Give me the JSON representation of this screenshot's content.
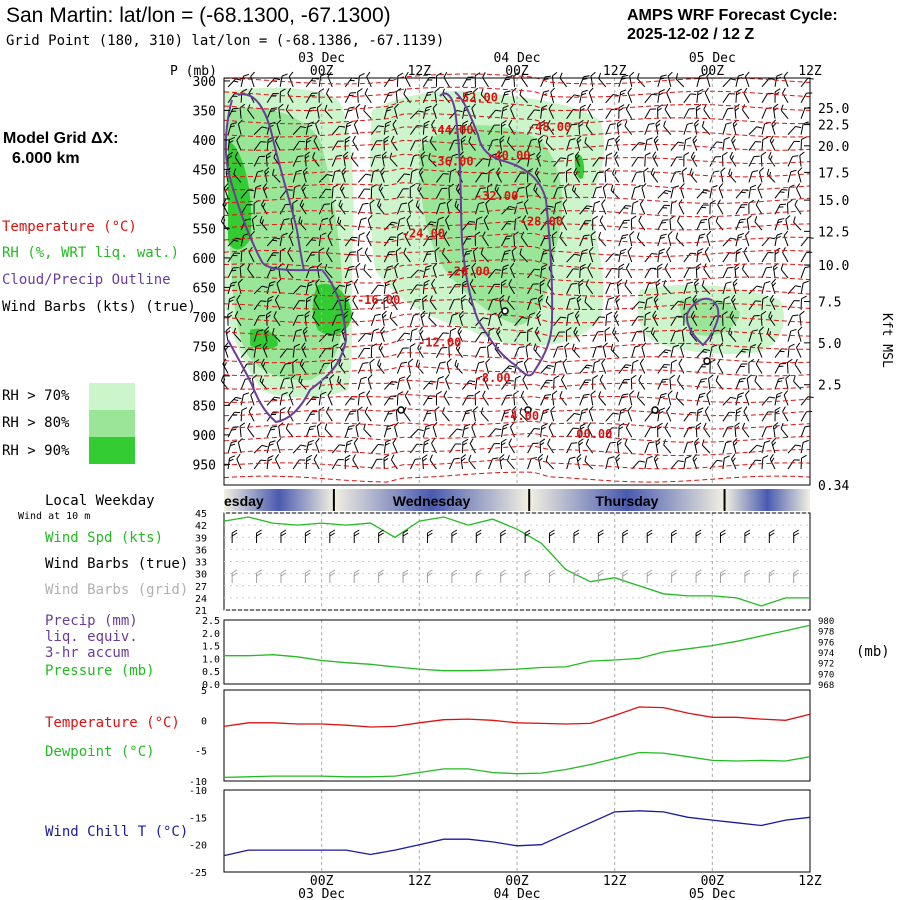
{
  "header": {
    "title": "San Martin:  lat/lon = (-68.1300, -67.1300)",
    "grid_point": "Grid Point (180, 310) lat/lon = (-68.1386, -67.1139)",
    "forecast_label": "AMPS WRF Forecast Cycle:",
    "forecast_cycle": "2025-12-02 / 12  Z"
  },
  "colors": {
    "temperature": "#dd1111",
    "rh": "#22bb22",
    "cloud": "#6a3d9a",
    "wind_chill": "#1a1aa0",
    "rh70": "#ccf5cc",
    "rh80": "#99e699",
    "rh90": "#33cc33"
  },
  "sidebar": {
    "model_grid_label": "Model Grid ΔX:",
    "model_grid_value": "6.000 km",
    "legend_temperature": "Temperature (°C)",
    "legend_rh": "RH (%, WRT liq. wat.)",
    "legend_cloud": "Cloud/Precip Outline",
    "legend_wind": "Wind Barbs (kts) (true)",
    "rh_thresholds": [
      "RH > 70%",
      "RH > 80%",
      "RH > 90%"
    ]
  },
  "time_axis": {
    "hour_labels": [
      "00Z",
      "12Z",
      "00Z",
      "12Z",
      "00Z",
      "12Z"
    ],
    "hour_values": [
      12,
      24,
      36,
      48,
      60,
      72
    ],
    "date_labels": [
      "03 Dec",
      "04 Dec",
      "05 Dec"
    ],
    "date_values": [
      12,
      36,
      60
    ],
    "range": [
      0,
      72
    ]
  },
  "chart_data": [
    {
      "type": "heatmap",
      "name": "cross-section",
      "ylabel": "P (mb)",
      "right_label": "Kft MSL",
      "pressure_levels": [
        300,
        350,
        400,
        450,
        500,
        550,
        600,
        650,
        700,
        750,
        800,
        850,
        900,
        950
      ],
      "ylim": [
        985,
        295
      ],
      "height_ticks": [
        {
          "label": "25.0",
          "p": 346
        },
        {
          "label": "22.5",
          "p": 374
        },
        {
          "label": "20.0",
          "p": 410
        },
        {
          "label": "17.5",
          "p": 455
        },
        {
          "label": "15.0",
          "p": 502
        },
        {
          "label": "12.5",
          "p": 555
        },
        {
          "label": "10.0",
          "p": 612
        },
        {
          "label": "7.5",
          "p": 674
        },
        {
          "label": "5.0",
          "p": 744
        },
        {
          "label": "2.5",
          "p": 815
        },
        {
          "label": "0.34",
          "p": 985
        }
      ],
      "temperature_labels": [
        {
          "text": "-52.00",
          "t": 31,
          "p": 335
        },
        {
          "text": "-44.00",
          "t": 28,
          "p": 390
        },
        {
          "text": "-48.00",
          "t": 40,
          "p": 385
        },
        {
          "text": "-40.00",
          "t": 35,
          "p": 433
        },
        {
          "text": "-36.00",
          "t": 28,
          "p": 443
        },
        {
          "text": "-32.00",
          "t": 33.5,
          "p": 502
        },
        {
          "text": "-28.00",
          "t": 39,
          "p": 545
        },
        {
          "text": "-24.00",
          "t": 24.5,
          "p": 565
        },
        {
          "text": "-20.00",
          "t": 30,
          "p": 630
        },
        {
          "text": "-16.00",
          "t": 19,
          "p": 678
        },
        {
          "text": "-12.00",
          "t": 26.5,
          "p": 750
        },
        {
          "text": "-8.00",
          "t": 33,
          "p": 810
        },
        {
          "text": "-4.00",
          "t": 36.5,
          "p": 875
        },
        {
          "text": "00.00",
          "t": 45.5,
          "p": 905
        }
      ]
    },
    {
      "type": "line",
      "name": "wind",
      "labels": [
        "Local Weekday",
        "Wind at 10 m",
        "Wind Spd (kts)",
        "Wind Barbs (true)",
        "Wind Barbs (grid)"
      ],
      "weekdays": [
        {
          "name": "esday",
          "t": 0
        },
        {
          "name": "Wednesday",
          "t": 24
        },
        {
          "name": "Thursday",
          "t": 49
        }
      ],
      "weekday_boundaries": [
        13.5,
        37.5,
        61.5
      ],
      "ylim": [
        21,
        45
      ],
      "yticks": [
        45,
        42,
        39,
        36,
        33,
        30,
        27,
        24,
        21
      ],
      "x": [
        0,
        3,
        6,
        9,
        12,
        15,
        18,
        21,
        24,
        27,
        30,
        33,
        36,
        39,
        42,
        45,
        48,
        51,
        54,
        57,
        60,
        63,
        66,
        69,
        72
      ],
      "values": [
        43,
        44,
        42.5,
        42,
        42.5,
        42,
        42.5,
        39,
        43,
        44,
        42,
        43.5,
        41,
        37.5,
        31,
        28,
        29,
        27,
        25,
        24.5,
        24.5,
        24,
        22,
        24,
        24
      ]
    },
    {
      "type": "line",
      "name": "precip-pressure",
      "labels": [
        "Precip (mm)",
        "liq. equiv.",
        "3-hr accum",
        "Pressure (mb)"
      ],
      "right_unit": "(mb)",
      "precip_ticks": [
        "2.5",
        "2.0",
        "1.5",
        "1.0",
        "0.5",
        "0.0"
      ],
      "pressure_ticks": [
        "980",
        "978",
        "976",
        "974",
        "972",
        "970",
        "968"
      ],
      "ylim": [
        968,
        980
      ],
      "x": [
        0,
        3,
        6,
        9,
        12,
        15,
        18,
        21,
        24,
        27,
        30,
        33,
        36,
        39,
        42,
        45,
        48,
        51,
        54,
        57,
        60,
        63,
        66,
        69,
        72
      ],
      "values": [
        973.3,
        973.3,
        973.5,
        973.1,
        972.4,
        972.0,
        971.7,
        971.2,
        970.8,
        970.5,
        970.5,
        970.6,
        970.8,
        971.1,
        971.2,
        972.3,
        972.5,
        972.8,
        974,
        974.6,
        975.2,
        976.0,
        977.0,
        978.0,
        979.0
      ]
    },
    {
      "type": "line",
      "name": "temperature-dewpoint",
      "labels": [
        "Temperature (°C)",
        "Dewpoint (°C)"
      ],
      "yticks": [
        "5",
        "0",
        "-5",
        "-10"
      ],
      "ylim": [
        -10,
        5
      ],
      "x": [
        0,
        3,
        6,
        9,
        12,
        15,
        18,
        21,
        24,
        27,
        30,
        33,
        36,
        39,
        42,
        45,
        48,
        51,
        54,
        57,
        60,
        63,
        66,
        69,
        72
      ],
      "series": [
        {
          "name": "Temperature",
          "values": [
            -1.0,
            -0.4,
            -0.4,
            -0.6,
            -0.6,
            -0.8,
            -1.1,
            -1.0,
            -0.4,
            0.1,
            0.2,
            0.0,
            -0.4,
            -0.5,
            -0.6,
            -0.5,
            0.8,
            2.2,
            2.1,
            1.2,
            0.5,
            0.5,
            0.2,
            0.0,
            1.0
          ]
        },
        {
          "name": "Dewpoint",
          "values": [
            -9.4,
            -9.3,
            -9.2,
            -9.2,
            -9.2,
            -9.3,
            -9.3,
            -9.2,
            -8.6,
            -8.0,
            -8.0,
            -8.6,
            -8.8,
            -8.7,
            -8.1,
            -7.3,
            -6.3,
            -5.3,
            -5.4,
            -6.0,
            -6.6,
            -6.7,
            -6.6,
            -6.7,
            -6.0
          ]
        }
      ]
    },
    {
      "type": "line",
      "name": "wind-chill",
      "labels": [
        "Wind Chill T (°C)"
      ],
      "yticks": [
        "-10",
        "-15",
        "-20",
        "-25"
      ],
      "ylim": [
        -25,
        -10
      ],
      "x": [
        0,
        3,
        6,
        9,
        12,
        15,
        18,
        21,
        24,
        27,
        30,
        33,
        36,
        39,
        42,
        45,
        48,
        51,
        54,
        57,
        60,
        63,
        66,
        69,
        72
      ],
      "values": [
        -22.0,
        -21.0,
        -21.0,
        -21.0,
        -21.0,
        -21.0,
        -21.8,
        -21.0,
        -20.0,
        -19.0,
        -19.0,
        -19.5,
        -20.2,
        -20.0,
        -18.0,
        -16.0,
        -14.0,
        -13.8,
        -14.0,
        -15.0,
        -15.5,
        -16.0,
        -16.5,
        -15.5,
        -15.0
      ]
    }
  ]
}
